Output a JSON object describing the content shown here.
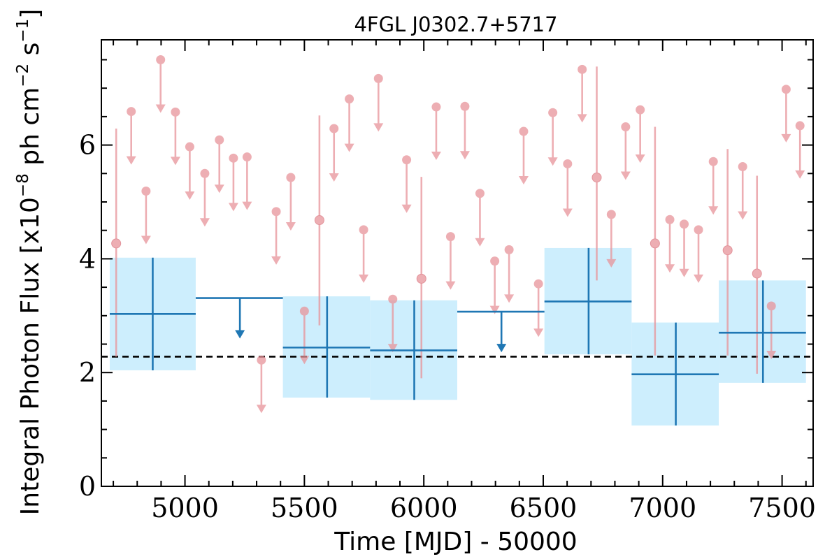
{
  "chart_data": {
    "type": "scatter",
    "title": "4FGL J0302.7+5717",
    "xlabel": "Time [MJD] - 50000",
    "ylabel_prefix": "Integral Photon Flux [x10",
    "ylabel_exp1": "−8",
    "ylabel_mid": " ph cm",
    "ylabel_exp2": "−2",
    "ylabel_mid2": " s",
    "ylabel_exp3": "−1",
    "ylabel_suffix": "]",
    "xlim": [
      4650,
      7630
    ],
    "ylim": [
      0,
      7.85
    ],
    "xticks": [
      5000,
      5500,
      6000,
      6500,
      7000,
      7500
    ],
    "xtick_labels": [
      "5000",
      "5500",
      "6000",
      "6500",
      "7000",
      "7500"
    ],
    "yticks": [
      0,
      2,
      4,
      6
    ],
    "ytick_labels": [
      "0",
      "2",
      "4",
      "6"
    ],
    "colors": {
      "long_bin": "#1f77b4",
      "long_bin_band": "#cdeefd",
      "short_bin": "#e8949a",
      "reference_line": "#000000"
    },
    "reference_line_y": 2.28,
    "long_bins": [
      {
        "x": 4865,
        "xlo": 4685,
        "xhi": 5045,
        "y": 3.03,
        "ylo": 2.04,
        "yhi": 4.02,
        "upper_limit": false
      },
      {
        "x": 5230,
        "xlo": 5045,
        "xhi": 5410,
        "y": 3.31,
        "upper_limit": true
      },
      {
        "x": 5595,
        "xlo": 5410,
        "xhi": 5775,
        "y": 2.44,
        "ylo": 1.56,
        "yhi": 3.34,
        "upper_limit": false
      },
      {
        "x": 5960,
        "xlo": 5775,
        "xhi": 6140,
        "y": 2.39,
        "ylo": 1.52,
        "yhi": 3.27,
        "upper_limit": false
      },
      {
        "x": 6325,
        "xlo": 6140,
        "xhi": 6505,
        "y": 3.07,
        "upper_limit": true
      },
      {
        "x": 6690,
        "xlo": 6505,
        "xhi": 6870,
        "y": 3.25,
        "ylo": 2.32,
        "yhi": 4.19,
        "upper_limit": false
      },
      {
        "x": 7055,
        "xlo": 6870,
        "xhi": 7235,
        "y": 1.97,
        "ylo": 1.07,
        "yhi": 2.88,
        "upper_limit": false
      },
      {
        "x": 7420,
        "xlo": 7235,
        "xhi": 7600,
        "y": 2.7,
        "ylo": 1.82,
        "yhi": 3.62,
        "upper_limit": false
      }
    ],
    "short_bins": [
      {
        "x": 4712,
        "y": 4.27,
        "ylo": 2.28,
        "yhi": 6.29,
        "upper_limit": false
      },
      {
        "x": 4775,
        "y": 6.59,
        "upper_limit": true
      },
      {
        "x": 4837,
        "y": 5.19,
        "upper_limit": true
      },
      {
        "x": 4898,
        "y": 7.5,
        "upper_limit": true
      },
      {
        "x": 4960,
        "y": 6.58,
        "upper_limit": true
      },
      {
        "x": 5020,
        "y": 5.97,
        "upper_limit": true
      },
      {
        "x": 5083,
        "y": 5.5,
        "upper_limit": true
      },
      {
        "x": 5144,
        "y": 6.09,
        "upper_limit": true
      },
      {
        "x": 5203,
        "y": 5.77,
        "upper_limit": true
      },
      {
        "x": 5260,
        "y": 5.79,
        "upper_limit": true
      },
      {
        "x": 5320,
        "y": 2.22,
        "upper_limit": true
      },
      {
        "x": 5382,
        "y": 4.83,
        "upper_limit": true
      },
      {
        "x": 5443,
        "y": 5.43,
        "upper_limit": true
      },
      {
        "x": 5500,
        "y": 3.08,
        "upper_limit": true
      },
      {
        "x": 5563,
        "y": 4.68,
        "ylo": 2.83,
        "yhi": 6.52,
        "upper_limit": false
      },
      {
        "x": 5624,
        "y": 6.29,
        "upper_limit": true
      },
      {
        "x": 5688,
        "y": 6.81,
        "upper_limit": true
      },
      {
        "x": 5748,
        "y": 4.51,
        "upper_limit": true
      },
      {
        "x": 5810,
        "y": 7.17,
        "upper_limit": true
      },
      {
        "x": 5870,
        "y": 3.29,
        "upper_limit": true
      },
      {
        "x": 5928,
        "y": 5.74,
        "upper_limit": true
      },
      {
        "x": 5990,
        "y": 3.65,
        "ylo": 1.9,
        "yhi": 5.44,
        "upper_limit": false
      },
      {
        "x": 6052,
        "y": 6.67,
        "upper_limit": true
      },
      {
        "x": 6112,
        "y": 4.39,
        "upper_limit": true
      },
      {
        "x": 6172,
        "y": 6.68,
        "upper_limit": true
      },
      {
        "x": 6235,
        "y": 5.15,
        "upper_limit": true
      },
      {
        "x": 6297,
        "y": 3.96,
        "upper_limit": true
      },
      {
        "x": 6357,
        "y": 4.16,
        "upper_limit": true
      },
      {
        "x": 6418,
        "y": 6.24,
        "upper_limit": true
      },
      {
        "x": 6480,
        "y": 3.56,
        "upper_limit": true
      },
      {
        "x": 6540,
        "y": 6.57,
        "upper_limit": true
      },
      {
        "x": 6602,
        "y": 5.67,
        "upper_limit": true
      },
      {
        "x": 6663,
        "y": 7.33,
        "upper_limit": true
      },
      {
        "x": 6724,
        "y": 5.43,
        "ylo": 3.62,
        "yhi": 7.38,
        "upper_limit": false
      },
      {
        "x": 6785,
        "y": 4.78,
        "upper_limit": true
      },
      {
        "x": 6845,
        "y": 6.32,
        "upper_limit": true
      },
      {
        "x": 6906,
        "y": 6.62,
        "upper_limit": true
      },
      {
        "x": 6968,
        "y": 4.27,
        "ylo": 2.3,
        "yhi": 6.32,
        "upper_limit": false
      },
      {
        "x": 7030,
        "y": 4.69,
        "upper_limit": true
      },
      {
        "x": 7090,
        "y": 4.61,
        "upper_limit": true
      },
      {
        "x": 7150,
        "y": 4.51,
        "upper_limit": true
      },
      {
        "x": 7212,
        "y": 5.71,
        "upper_limit": true
      },
      {
        "x": 7272,
        "y": 4.15,
        "ylo": 2.3,
        "yhi": 5.93,
        "upper_limit": false
      },
      {
        "x": 7335,
        "y": 5.62,
        "upper_limit": true
      },
      {
        "x": 7395,
        "y": 3.74,
        "ylo": 1.98,
        "yhi": 5.46,
        "upper_limit": false
      },
      {
        "x": 7455,
        "y": 3.17,
        "upper_limit": true
      },
      {
        "x": 7517,
        "y": 6.98,
        "upper_limit": true
      },
      {
        "x": 7575,
        "y": 6.34,
        "upper_limit": true
      }
    ]
  }
}
